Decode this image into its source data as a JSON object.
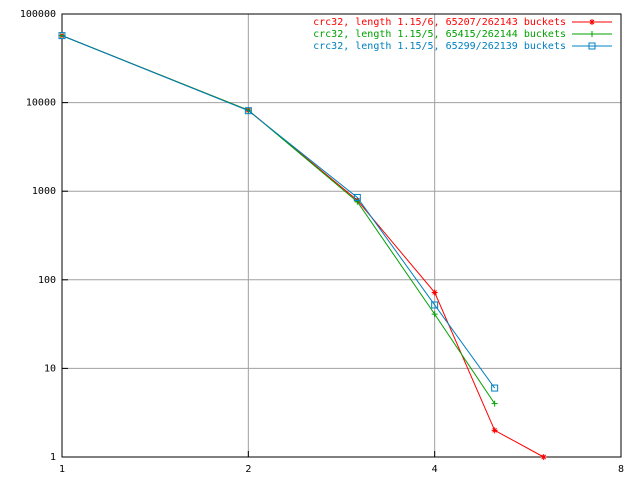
{
  "chart_data": {
    "type": "line",
    "x": [
      1,
      2,
      3,
      4,
      5,
      6
    ],
    "series": [
      {
        "name": "crc32, length 1.15/6, 65207/262143 buckets",
        "color": "#ff0000",
        "marker": "plus",
        "values": [
          57000,
          8200,
          790,
          72,
          2,
          1
        ]
      },
      {
        "name": "crc32, length 1.15/5, 65415/262144 buckets",
        "color": "#00a000",
        "marker": "cross",
        "values": [
          57000,
          8200,
          760,
          41,
          4,
          null
        ]
      },
      {
        "name": "crc32, length 1.15/5, 65299/262139 buckets",
        "color": "#0080c0",
        "marker": "square",
        "values": [
          57000,
          8100,
          850,
          52,
          6,
          null
        ]
      }
    ],
    "xscale": "log",
    "yscale": "log",
    "xlim": [
      1,
      8
    ],
    "xticks": [
      1,
      2,
      4,
      8
    ],
    "ylim": [
      1,
      100000
    ],
    "yticks": [
      1,
      10,
      100,
      1000,
      10000,
      100000
    ],
    "grid": true,
    "legend": "top-right"
  }
}
